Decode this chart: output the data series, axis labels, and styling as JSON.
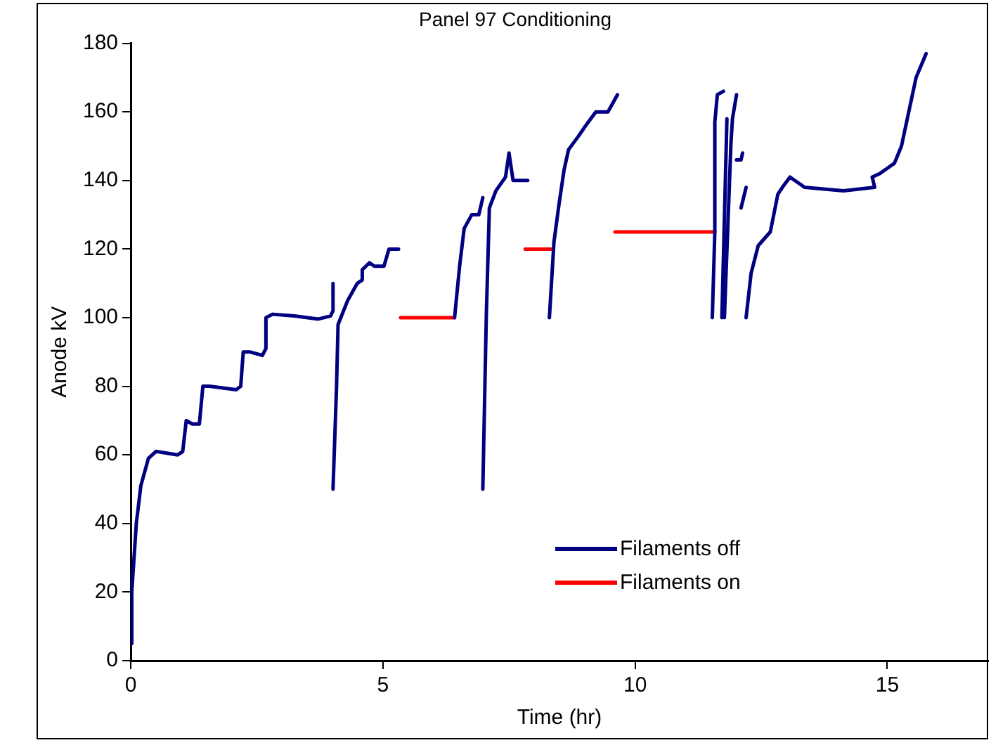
{
  "chart_data": {
    "type": "line",
    "title": "Panel 97 Conditioning",
    "xlabel": "Time (hr)",
    "ylabel": "Anode kV",
    "xlim": [
      0,
      17
    ],
    "xticks": [
      0,
      5,
      10,
      15
    ],
    "ylim": [
      0,
      180
    ],
    "yticks": [
      0,
      20,
      40,
      60,
      80,
      100,
      120,
      140,
      160,
      180
    ],
    "grid": false,
    "legend": "bottom",
    "marker": "none",
    "line_style": "solid",
    "series": [
      {
        "name": "Filaments off",
        "color": "#000080",
        "x": [
          0.02,
          0.02,
          0.11,
          0.2,
          0.35,
          0.5,
          0.93,
          1.03,
          1.1,
          1.22,
          1.36,
          1.43,
          1.56,
          2.09,
          2.18,
          2.23,
          2.37,
          2.61,
          2.68,
          2.68,
          2.81,
          3.24,
          3.72,
          3.96,
          4.01,
          4.01,
          null,
          4.01,
          4.08,
          4.11,
          4.3,
          4.49,
          4.59,
          4.59,
          4.73,
          4.83,
          5.02,
          5.12,
          5.31,
          null,
          6.42,
          6.52,
          6.61,
          6.76,
          6.9,
          6.98,
          null,
          6.98,
          7.05,
          7.11,
          7.24,
          7.43,
          7.5,
          7.58,
          7.87,
          null,
          8.3,
          8.39,
          8.49,
          8.59,
          8.68,
          8.88,
          9.02,
          9.22,
          9.46,
          9.65,
          null,
          11.53,
          11.58,
          11.58,
          11.63,
          11.75,
          null,
          11.72,
          11.82,
          null,
          11.77,
          11.9,
          11.93,
          12.01,
          null,
          12.01,
          12.1,
          12.13,
          null,
          12.1,
          12.2,
          null,
          12.2,
          12.3,
          12.44,
          12.68,
          12.83,
          12.92,
          13.07,
          13.36,
          14.13,
          14.75,
          14.7,
          14.85,
          15.14,
          15.28,
          15.57,
          15.77
        ],
        "values": [
          5,
          20,
          40,
          51,
          59,
          61,
          60,
          61,
          70,
          69,
          69,
          80,
          80,
          79,
          80,
          90,
          90,
          89,
          91,
          100,
          101,
          100.5,
          99.6,
          100.5,
          102,
          110,
          null,
          50,
          80,
          98,
          105,
          110,
          111,
          114,
          116,
          115,
          115,
          120,
          120,
          null,
          100,
          115,
          126,
          130,
          130,
          135,
          null,
          50,
          101,
          132,
          137,
          141,
          148,
          140,
          140,
          null,
          100,
          122,
          133,
          143,
          149,
          153,
          156,
          160,
          160,
          165,
          null,
          100,
          125,
          157,
          165,
          166,
          null,
          100,
          158,
          null,
          100,
          151,
          158,
          165,
          null,
          146,
          146,
          148,
          null,
          132,
          138,
          null,
          100,
          113,
          121,
          125,
          136,
          138,
          141,
          138,
          137,
          138,
          141,
          142,
          145,
          150,
          170,
          177
        ]
      },
      {
        "name": "Filaments on",
        "color": "#ff0000",
        "x": [
          5.35,
          6.42,
          null,
          7.82,
          8.33,
          null,
          9.6,
          11.58
        ],
        "values": [
          100,
          100,
          null,
          120,
          120,
          null,
          125,
          125
        ]
      }
    ]
  }
}
